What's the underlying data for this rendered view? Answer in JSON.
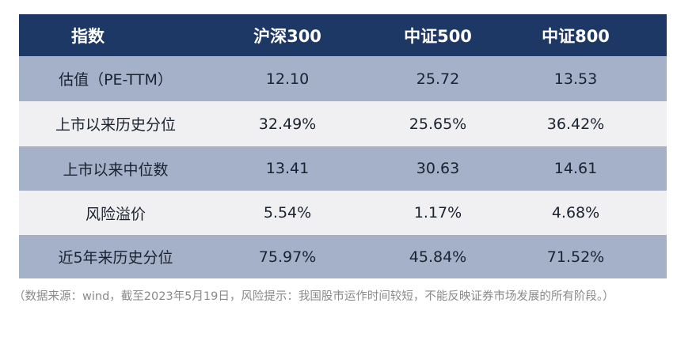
{
  "table": {
    "headers": [
      "指数",
      "沪深300",
      "中证500",
      "中证800"
    ],
    "rows": [
      {
        "label": "估值（PE-TTM）",
        "values": [
          "12.10",
          "25.72",
          "13.53"
        ]
      },
      {
        "label": "上市以来历史分位",
        "values": [
          "32.49%",
          "25.65%",
          "36.42%"
        ]
      },
      {
        "label": "上市以来中位数",
        "values": [
          "13.41",
          "30.63",
          "14.61"
        ]
      },
      {
        "label": "风险溢价",
        "values": [
          "5.54%",
          "1.17%",
          "4.68%"
        ]
      },
      {
        "label": "近5年来历史分位",
        "values": [
          "75.97%",
          "45.84%",
          "71.52%"
        ]
      }
    ],
    "colors": {
      "header_bg": "#1e3866",
      "row_blue": "#a4b1c8",
      "row_light": "#f0f0f2"
    }
  },
  "note": "（数据来源：wind，截至2023年5月19日，风险提示：我国股市运作时间较短，不能反映证券市场发展的所有阶段。）"
}
